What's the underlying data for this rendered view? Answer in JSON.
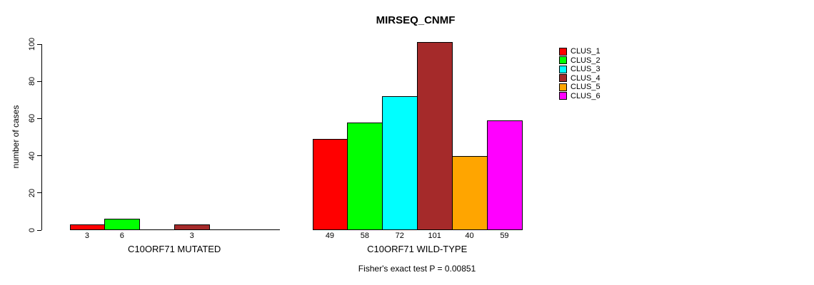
{
  "title": "MIRSEQ_CNMF",
  "footnote": "Fisher's exact test P = 0.00851",
  "chart_data": {
    "type": "bar",
    "title": "MIRSEQ_CNMF",
    "xlabel": "",
    "ylabel": "number of cases",
    "ylim": [
      0,
      100
    ],
    "y_ticks": [
      0,
      20,
      40,
      60,
      80,
      100
    ],
    "grid": false,
    "legend_position": "right",
    "categories": [
      "C10ORF71 MUTATED",
      "C10ORF71 WILD-TYPE"
    ],
    "series": [
      {
        "name": "CLUS_1",
        "color": "#ff0000",
        "values": [
          3,
          49
        ]
      },
      {
        "name": "CLUS_2",
        "color": "#00ff00",
        "values": [
          6,
          58
        ]
      },
      {
        "name": "CLUS_3",
        "color": "#00ffff",
        "values": [
          0,
          72
        ]
      },
      {
        "name": "CLUS_4",
        "color": "#a52a2a",
        "values": [
          3,
          101
        ]
      },
      {
        "name": "CLUS_5",
        "color": "#ffa500",
        "values": [
          0,
          40
        ]
      },
      {
        "name": "CLUS_6",
        "color": "#ff00ff",
        "values": [
          0,
          59
        ]
      }
    ],
    "bar_value_labels_shown": true,
    "zero_value_labels_hidden": true,
    "annotation": "Fisher's exact test P = 0.00851"
  }
}
